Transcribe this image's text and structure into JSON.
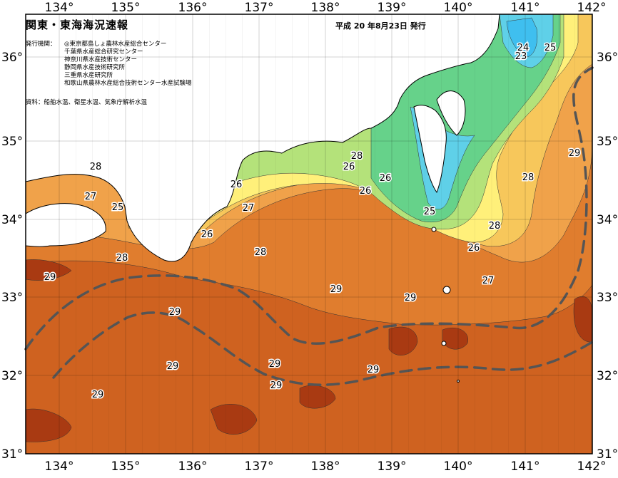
{
  "map": {
    "title": "関東・東海海況速報",
    "issue_date": "平成 20 年8月23日 発行",
    "publisher_label": "発行機関：",
    "publishers": [
      "◎東京都島しょ農林水産総合センター",
      "千葉県水産総合研究センター",
      "神奈川県水産技術センター",
      "静岡県水産技術研究所",
      "三重県水産研究所",
      "和歌山県農林水産総合技術センター水産試験場"
    ],
    "source": "資料：船舶水温、衛星水温、気象庁解析水温",
    "longitude_labels": [
      "134°",
      "135°",
      "136°",
      "137°",
      "138°",
      "139°",
      "140°",
      "141°",
      "142°"
    ],
    "latitude_labels": [
      "31°",
      "32°",
      "33°",
      "34°",
      "35°",
      "36°"
    ],
    "temperature_labels": [
      "23",
      "24",
      "25",
      "25",
      "25",
      "26",
      "26",
      "26",
      "26",
      "26",
      "26",
      "27",
      "27",
      "27",
      "28",
      "28",
      "28",
      "28",
      "28",
      "28",
      "29",
      "29",
      "29",
      "29",
      "29",
      "29",
      "29",
      "29",
      "29",
      "29"
    ],
    "colors": {
      "land": "#ffffff",
      "sea_23": "#3fbfef",
      "sea_24": "#5fd0e8",
      "sea_25": "#66d28a",
      "sea_26": "#b4e27a",
      "sea_27": "#fff07a",
      "sea_27_5": "#f7c75b",
      "sea_28": "#f0a24a",
      "sea_28_5": "#e07d2e",
      "sea_29": "#cf6220",
      "sea_30": "#a93a12",
      "kuroshio_axis": "#555555",
      "grid": "#000000"
    }
  }
}
